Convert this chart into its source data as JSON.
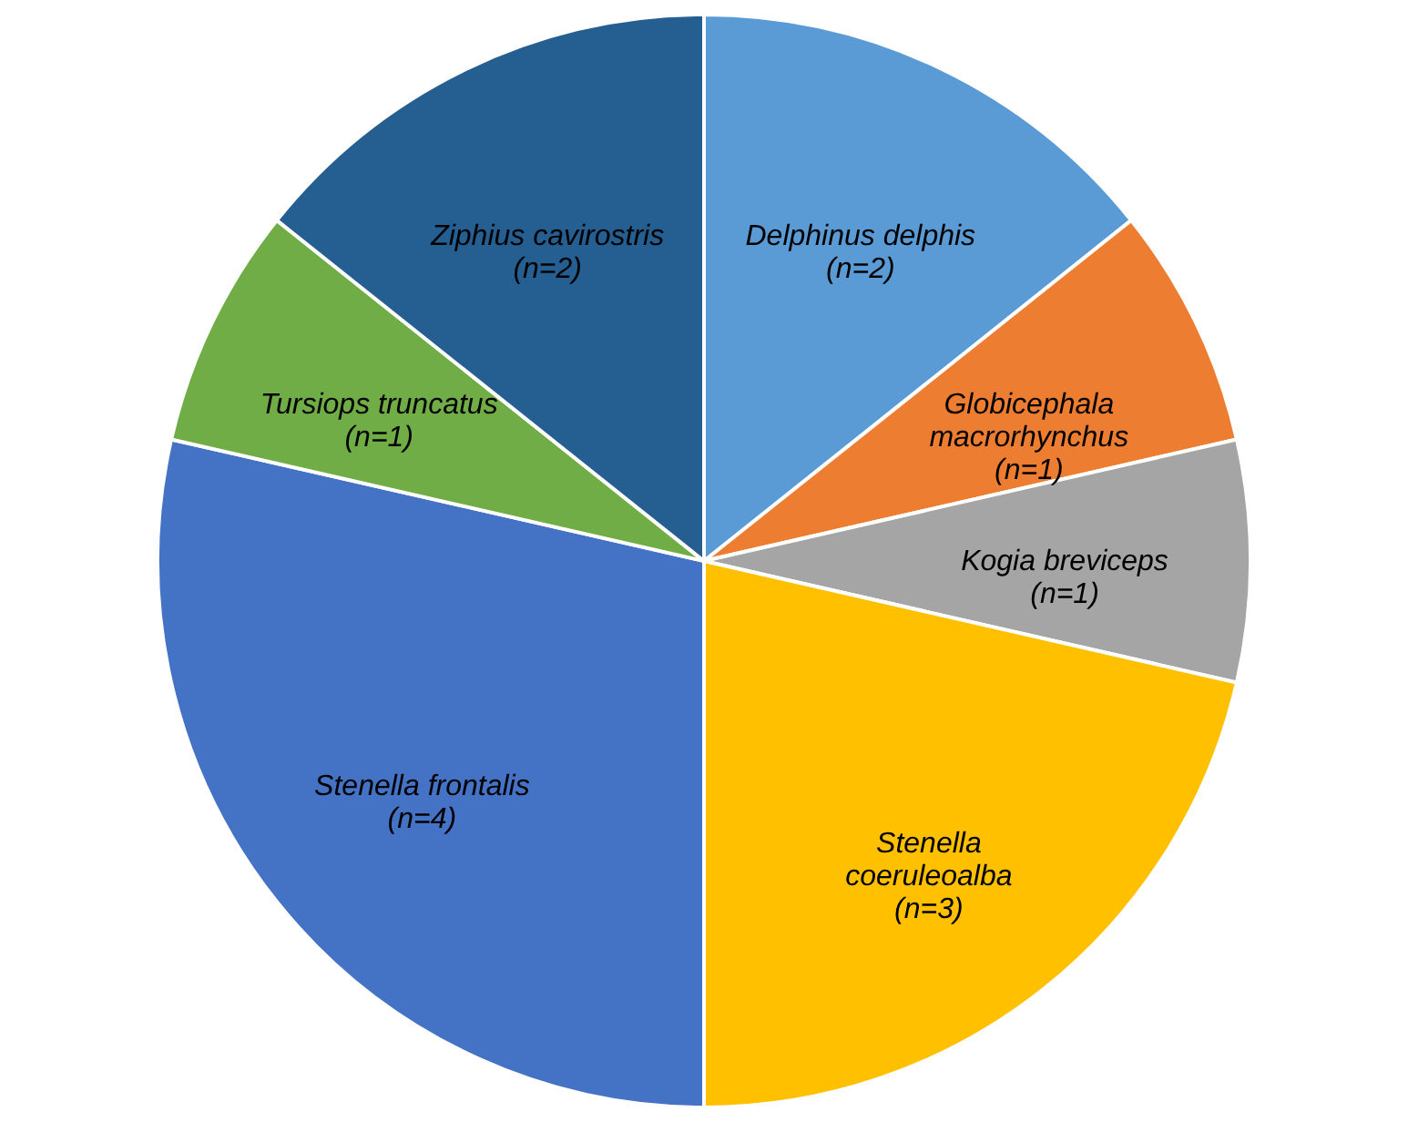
{
  "chart_data": {
    "type": "pie",
    "categories": [
      "Delphinus delphis",
      "Globicephala macrorhynchus",
      "Kogia breviceps",
      "Stenella coeruleoalba",
      "Stenella frontalis",
      "Tursiops truncatus",
      "Ziphius cavirostris"
    ],
    "values": [
      2,
      1,
      1,
      3,
      4,
      1,
      2
    ],
    "value_labels": [
      "(n=2)",
      "(n=1)",
      "(n=1)",
      "(n=3)",
      "(n=4)",
      "(n=1)",
      "(n=2)"
    ],
    "colors": [
      "#5b9bd5",
      "#ed7d31",
      "#a5a5a5",
      "#ffc000",
      "#4472c4",
      "#70ad47",
      "#255e91"
    ]
  }
}
